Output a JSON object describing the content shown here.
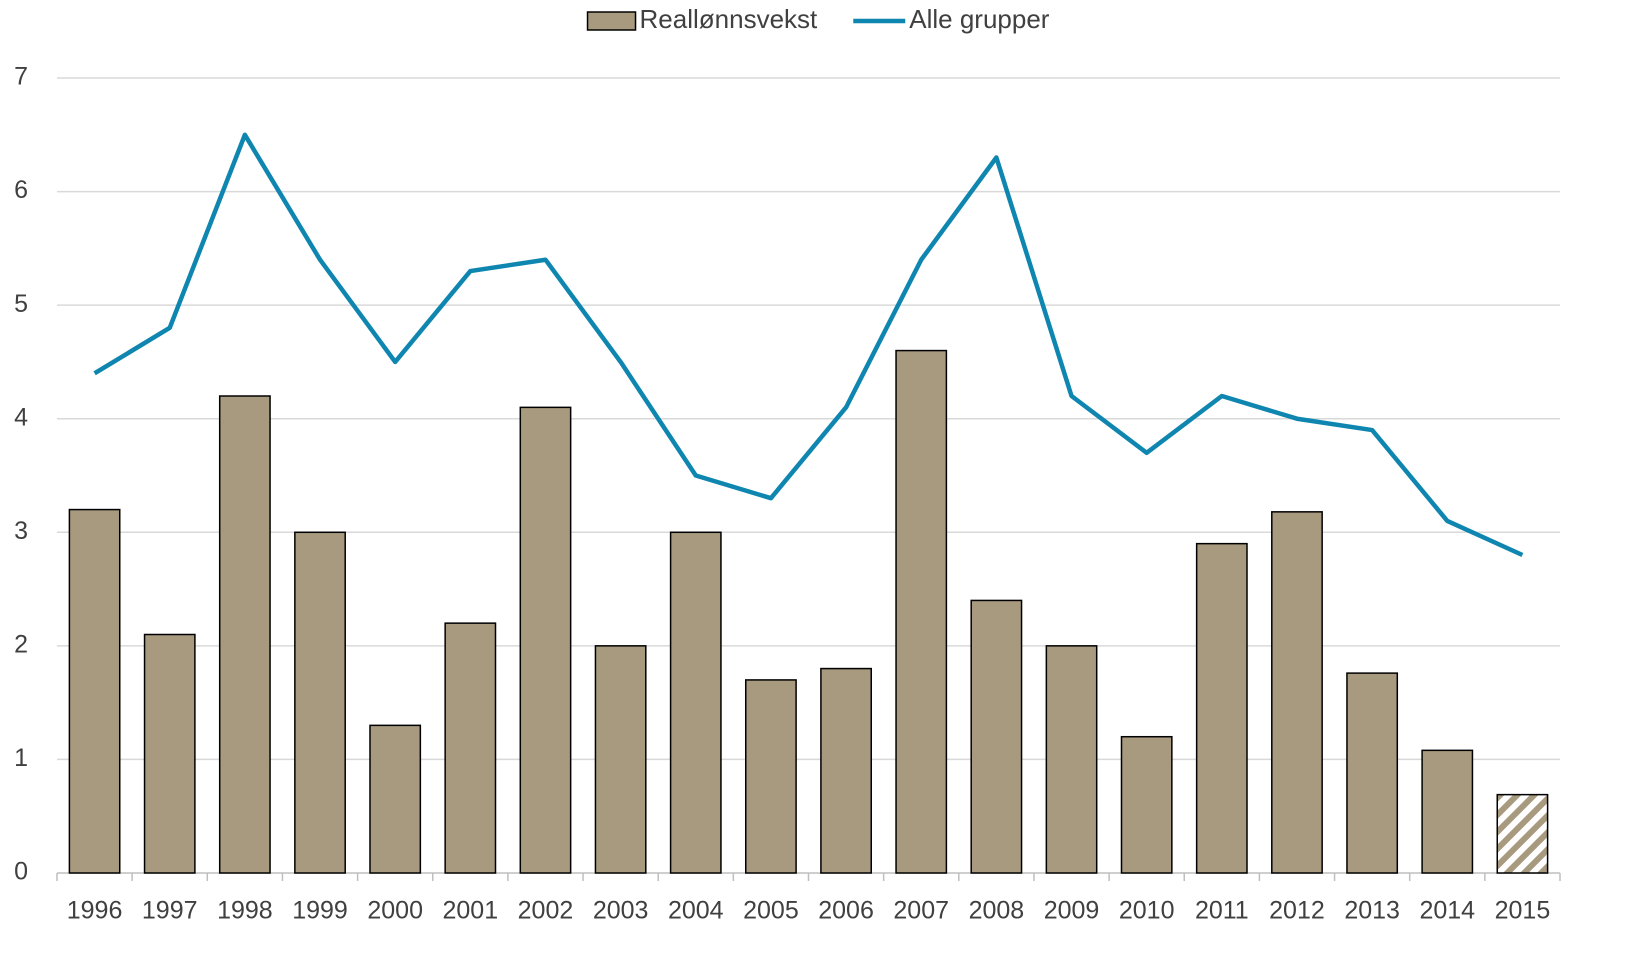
{
  "chart_data": {
    "type": "bar_line",
    "categories": [
      "1996",
      "1997",
      "1998",
      "1999",
      "2000",
      "2001",
      "2002",
      "2003",
      "2004",
      "2005",
      "2006",
      "2007",
      "2008",
      "2009",
      "2010",
      "2011",
      "2012",
      "2013",
      "2014",
      "2015"
    ],
    "series": [
      {
        "name": "Reallønnsvekst",
        "type": "bar",
        "color": "#a89a7e",
        "values": [
          3.2,
          2.1,
          4.2,
          3.0,
          1.3,
          2.2,
          4.1,
          2.0,
          3.0,
          1.7,
          1.8,
          4.6,
          2.4,
          2.0,
          1.2,
          2.9,
          3.18,
          1.76,
          1.08,
          0.69
        ],
        "hatched": [
          false,
          false,
          false,
          false,
          false,
          false,
          false,
          false,
          false,
          false,
          false,
          false,
          false,
          false,
          false,
          false,
          false,
          false,
          false,
          true
        ]
      },
      {
        "name": "Alle grupper",
        "type": "line",
        "color": "#0f86b0",
        "values": [
          4.4,
          4.8,
          6.5,
          5.4,
          4.5,
          5.3,
          5.4,
          4.5,
          3.5,
          3.3,
          4.1,
          5.4,
          6.3,
          4.2,
          3.7,
          4.2,
          4.0,
          3.9,
          3.1,
          2.8
        ]
      }
    ],
    "ylim": [
      0,
      7
    ],
    "yticks": [
      0,
      1,
      2,
      3,
      4,
      5,
      6,
      7
    ],
    "grid": true,
    "legend": "top"
  }
}
